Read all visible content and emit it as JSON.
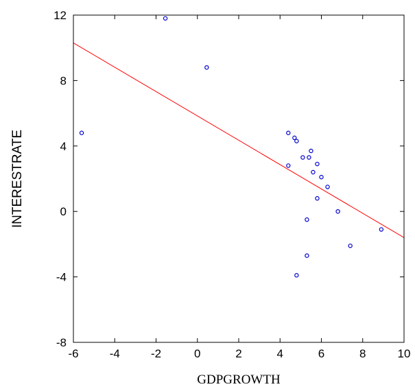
{
  "chart_data": {
    "type": "scatter",
    "xlabel": "GDPGROWTH",
    "ylabel": "INTERESTRATE",
    "xlim": [
      -6,
      10
    ],
    "ylim": [
      -8,
      12
    ],
    "x_ticks": [
      -6,
      -4,
      -2,
      0,
      2,
      4,
      6,
      8,
      10
    ],
    "y_ticks": [
      -8,
      -4,
      0,
      4,
      8,
      12
    ],
    "x_tick_labels": [
      "-6",
      "-4",
      "-2",
      "0",
      "2",
      "4",
      "6",
      "8",
      "10"
    ],
    "y_tick_labels": [
      "-8",
      "-4",
      "0",
      "4",
      "8",
      "12"
    ],
    "grid": false,
    "legend": false,
    "points": [
      {
        "x": -5.6,
        "y": 4.8
      },
      {
        "x": -1.55,
        "y": 11.8
      },
      {
        "x": 0.45,
        "y": 8.8
      },
      {
        "x": 4.4,
        "y": 4.8
      },
      {
        "x": 4.7,
        "y": 4.5
      },
      {
        "x": 4.8,
        "y": 4.3
      },
      {
        "x": 5.5,
        "y": 3.7
      },
      {
        "x": 5.1,
        "y": 3.3
      },
      {
        "x": 5.4,
        "y": 3.3
      },
      {
        "x": 5.8,
        "y": 2.9
      },
      {
        "x": 4.4,
        "y": 2.8
      },
      {
        "x": 5.6,
        "y": 2.4
      },
      {
        "x": 6.0,
        "y": 2.1
      },
      {
        "x": 6.3,
        "y": 1.5
      },
      {
        "x": 5.8,
        "y": 0.8
      },
      {
        "x": 6.8,
        "y": 0.0
      },
      {
        "x": 5.3,
        "y": -0.5
      },
      {
        "x": 8.9,
        "y": -1.1
      },
      {
        "x": 7.4,
        "y": -2.1
      },
      {
        "x": 5.3,
        "y": -2.7
      },
      {
        "x": 4.8,
        "y": -3.9
      }
    ],
    "fit_line": {
      "x": [
        -6,
        10
      ],
      "y": [
        10.3,
        -1.6
      ]
    },
    "colors": {
      "points": "#0000cc",
      "fit_line": "#ff0000",
      "axes": "#000000"
    }
  }
}
